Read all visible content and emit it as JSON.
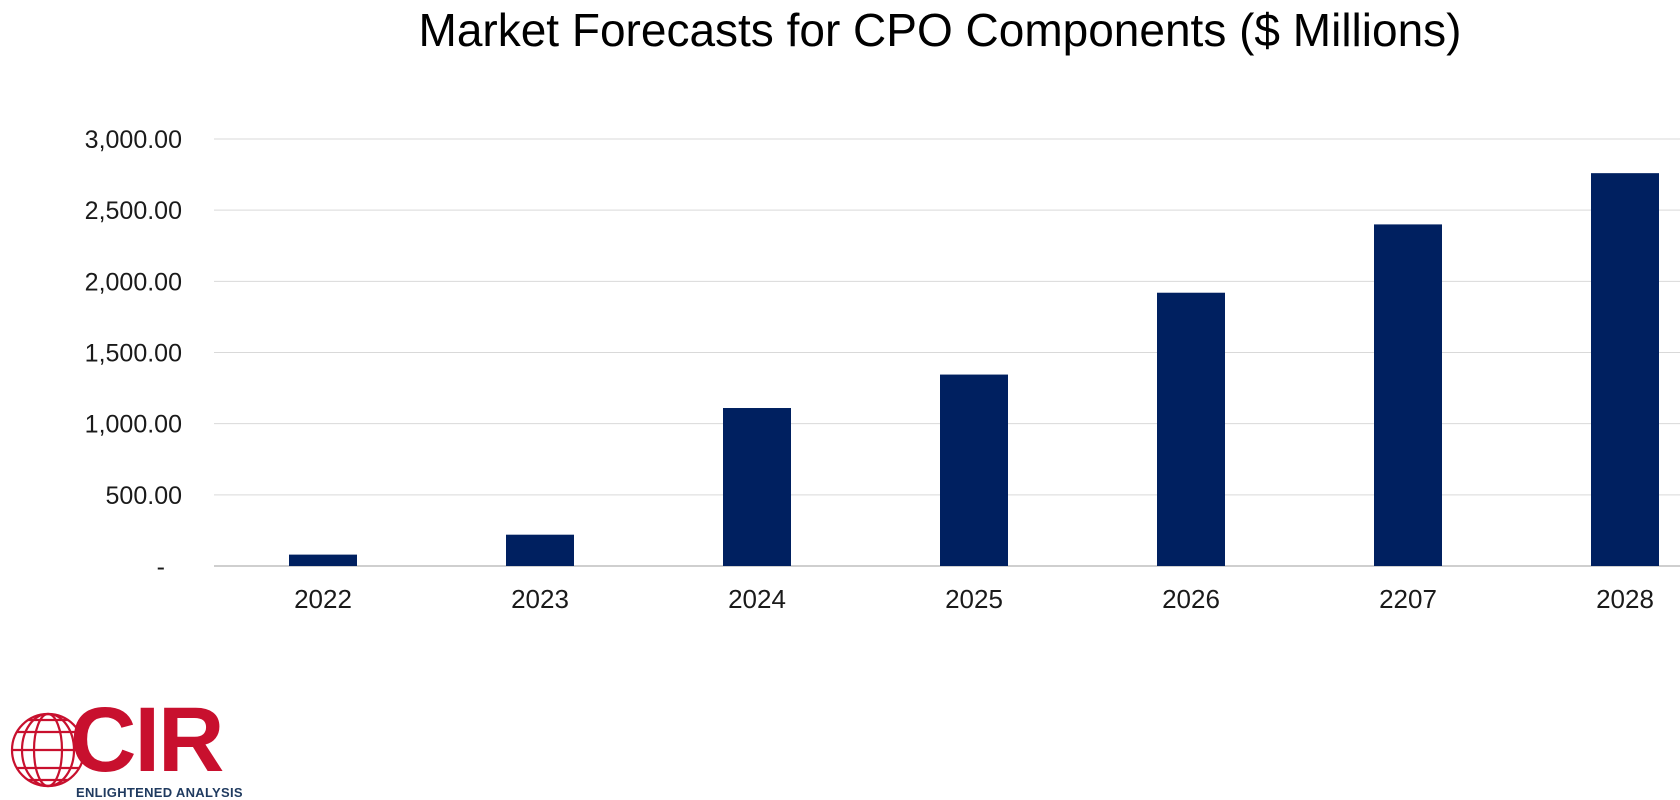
{
  "chart_data": {
    "type": "bar",
    "title": "Market Forecasts for CPO Components ($ Millions)",
    "categories": [
      "2022",
      "2023",
      "2024",
      "2025",
      "2026",
      "2207",
      "2028"
    ],
    "values": [
      80,
      220,
      1110,
      1345,
      1920,
      2400,
      2760
    ],
    "ylim": [
      0,
      3000
    ],
    "yticks": [
      {
        "value": 0,
        "label": "-"
      },
      {
        "value": 500,
        "label": "500.00"
      },
      {
        "value": 1000,
        "label": "1,000.00"
      },
      {
        "value": 1500,
        "label": "1,500.00"
      },
      {
        "value": 2000,
        "label": "2,000.00"
      },
      {
        "value": 2500,
        "label": "2,500.00"
      },
      {
        "value": 3000,
        "label": "3,000.00"
      }
    ],
    "xlabel": "",
    "ylabel": "",
    "grid": true,
    "colors": {
      "bar": "#002060",
      "grid": "#d9d9d9",
      "axis": "#bfbfbf"
    }
  },
  "logo": {
    "letters": "CIR",
    "tagline": "ENLIGHTENED ANALYSIS",
    "colors": {
      "primary": "#c8102e",
      "secondary": "#1f3a5f"
    }
  }
}
